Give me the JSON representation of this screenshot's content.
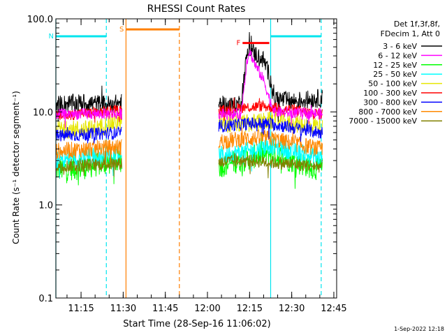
{
  "chart_data": {
    "type": "line",
    "title": "RHESSI Count Rates",
    "xlabel": "Start Time (28-Sep-16 11:06:02)",
    "ylabel": "Count Rate (s⁻¹ detector segment⁻¹)",
    "yscale": "log",
    "ylim": [
      0.1,
      100.0
    ],
    "y_ticks": [
      "0.1",
      "1.0",
      "10.0",
      "100.0"
    ],
    "xlim": [
      "11:06:02",
      "12:46:00"
    ],
    "x_ticks": [
      "11:15",
      "11:30",
      "11:45",
      "12:00",
      "12:15",
      "12:30",
      "12:45"
    ],
    "legend_position": "top-right",
    "legend_header": [
      "Det 1f,3f,8f,",
      "FDecim 1, Att 0"
    ],
    "timestamp": "1-Sep-2022 12:18",
    "data_gaps": [
      [
        "11:29:30",
        "12:04:00"
      ]
    ],
    "series": [
      {
        "name": "3 - 6 keV",
        "color": "#000000",
        "points": [
          [
            "11:06",
            12.0
          ],
          [
            "11:15",
            12.5
          ],
          [
            "11:25",
            12.0
          ],
          [
            "11:29",
            12.5
          ],
          [
            "12:04",
            12.0
          ],
          [
            "12:10",
            11.5
          ],
          [
            "12:12",
            13.0
          ],
          [
            "12:14",
            40.0
          ],
          [
            "12:15",
            48.0
          ],
          [
            "12:17",
            42.0
          ],
          [
            "12:20",
            36.0
          ],
          [
            "12:22",
            25.0
          ],
          [
            "12:24",
            14.0
          ],
          [
            "12:30",
            13.0
          ],
          [
            "12:40",
            14.0
          ]
        ]
      },
      {
        "name": "6 - 12 keV",
        "color": "#ff00ff",
        "points": [
          [
            "11:06",
            9.5
          ],
          [
            "11:29",
            9.5
          ],
          [
            "12:04",
            9.5
          ],
          [
            "12:12",
            9.5
          ],
          [
            "12:14",
            35.0
          ],
          [
            "12:15",
            45.0
          ],
          [
            "12:17",
            32.0
          ],
          [
            "12:20",
            22.0
          ],
          [
            "12:22",
            14.0
          ],
          [
            "12:24",
            10.0
          ],
          [
            "12:40",
            9.5
          ]
        ]
      },
      {
        "name": "12 - 25 keV",
        "color": "#00ff00",
        "points": [
          [
            "11:06",
            2.4
          ],
          [
            "11:15",
            2.5
          ],
          [
            "11:29",
            3.0
          ],
          [
            "12:04",
            2.6
          ],
          [
            "12:15",
            3.2
          ],
          [
            "12:22",
            3.6
          ],
          [
            "12:30",
            3.0
          ],
          [
            "12:40",
            2.4
          ]
        ]
      },
      {
        "name": "25 - 50 keV",
        "color": "#00ffff",
        "points": [
          [
            "11:06",
            3.0
          ],
          [
            "11:15",
            3.2
          ],
          [
            "11:29",
            3.6
          ],
          [
            "12:04",
            3.4
          ],
          [
            "12:15",
            3.8
          ],
          [
            "12:22",
            4.4
          ],
          [
            "12:30",
            3.8
          ],
          [
            "12:40",
            3.2
          ]
        ]
      },
      {
        "name": "50 - 100 keV",
        "color": "#e6e600",
        "points": [
          [
            "11:06",
            6.5
          ],
          [
            "11:20",
            6.5
          ],
          [
            "11:25",
            7.5
          ],
          [
            "11:29",
            8.0
          ],
          [
            "12:04",
            7.5
          ],
          [
            "12:15",
            7.5
          ],
          [
            "12:22",
            8.0
          ],
          [
            "12:40",
            7.0
          ]
        ]
      },
      {
        "name": "100 - 300 keV",
        "color": "#ff0000",
        "points": [
          [
            "11:06",
            9.0
          ],
          [
            "11:29",
            10.5
          ],
          [
            "12:04",
            10.0
          ],
          [
            "12:10",
            11.0
          ],
          [
            "12:20",
            11.5
          ],
          [
            "12:30",
            10.5
          ],
          [
            "12:40",
            9.5
          ]
        ]
      },
      {
        "name": "300 - 800 keV",
        "color": "#0000ff",
        "points": [
          [
            "11:06",
            5.5
          ],
          [
            "11:29",
            6.0
          ],
          [
            "12:04",
            7.0
          ],
          [
            "12:15",
            7.5
          ],
          [
            "12:22",
            7.5
          ],
          [
            "12:40",
            6.0
          ]
        ]
      },
      {
        "name": "800 - 7000 keV",
        "color": "#ff8800",
        "points": [
          [
            "11:06",
            3.8
          ],
          [
            "11:29",
            4.2
          ],
          [
            "12:04",
            4.8
          ],
          [
            "12:15",
            5.2
          ],
          [
            "12:22",
            5.2
          ],
          [
            "12:40",
            4.0
          ]
        ]
      },
      {
        "name": "7000 - 15000 keV",
        "color": "#808000",
        "points": [
          [
            "11:06",
            2.6
          ],
          [
            "11:29",
            2.8
          ],
          [
            "12:04",
            2.9
          ],
          [
            "12:15",
            3.0
          ],
          [
            "12:40",
            2.6
          ]
        ]
      }
    ],
    "flag_bars": [
      {
        "label": "N",
        "color": "#00e5ee",
        "label_color": "#00e5ee",
        "start": "11:06:02",
        "end": "11:24:00",
        "level": 65.0
      },
      {
        "label": "",
        "color": "#00e5ee",
        "label_color": "#00e5ee",
        "start": "12:22:30",
        "end": "12:40:30",
        "level": 65.0
      },
      {
        "label": "S",
        "color": "#ff7f00",
        "label_color": "#ff7f00",
        "start": "11:31:00",
        "end": "11:50:00",
        "level": 77.0
      },
      {
        "label": "F",
        "color": "#ff0000",
        "label_color": "#ff0000",
        "start": "12:12:30",
        "end": "12:22:00",
        "level": 55.0
      }
    ],
    "vlines": [
      {
        "t": "11:06:02",
        "color": "#00e5ee",
        "style": "solid"
      },
      {
        "t": "11:24:00",
        "color": "#00e5ee",
        "style": "dashed"
      },
      {
        "t": "11:31:00",
        "color": "#ff7f00",
        "style": "solid"
      },
      {
        "t": "11:50:00",
        "color": "#ff7f00",
        "style": "dashed"
      },
      {
        "t": "12:22:30",
        "color": "#00e5ee",
        "style": "solid"
      },
      {
        "t": "12:40:30",
        "color": "#00e5ee",
        "style": "dashed"
      }
    ]
  }
}
